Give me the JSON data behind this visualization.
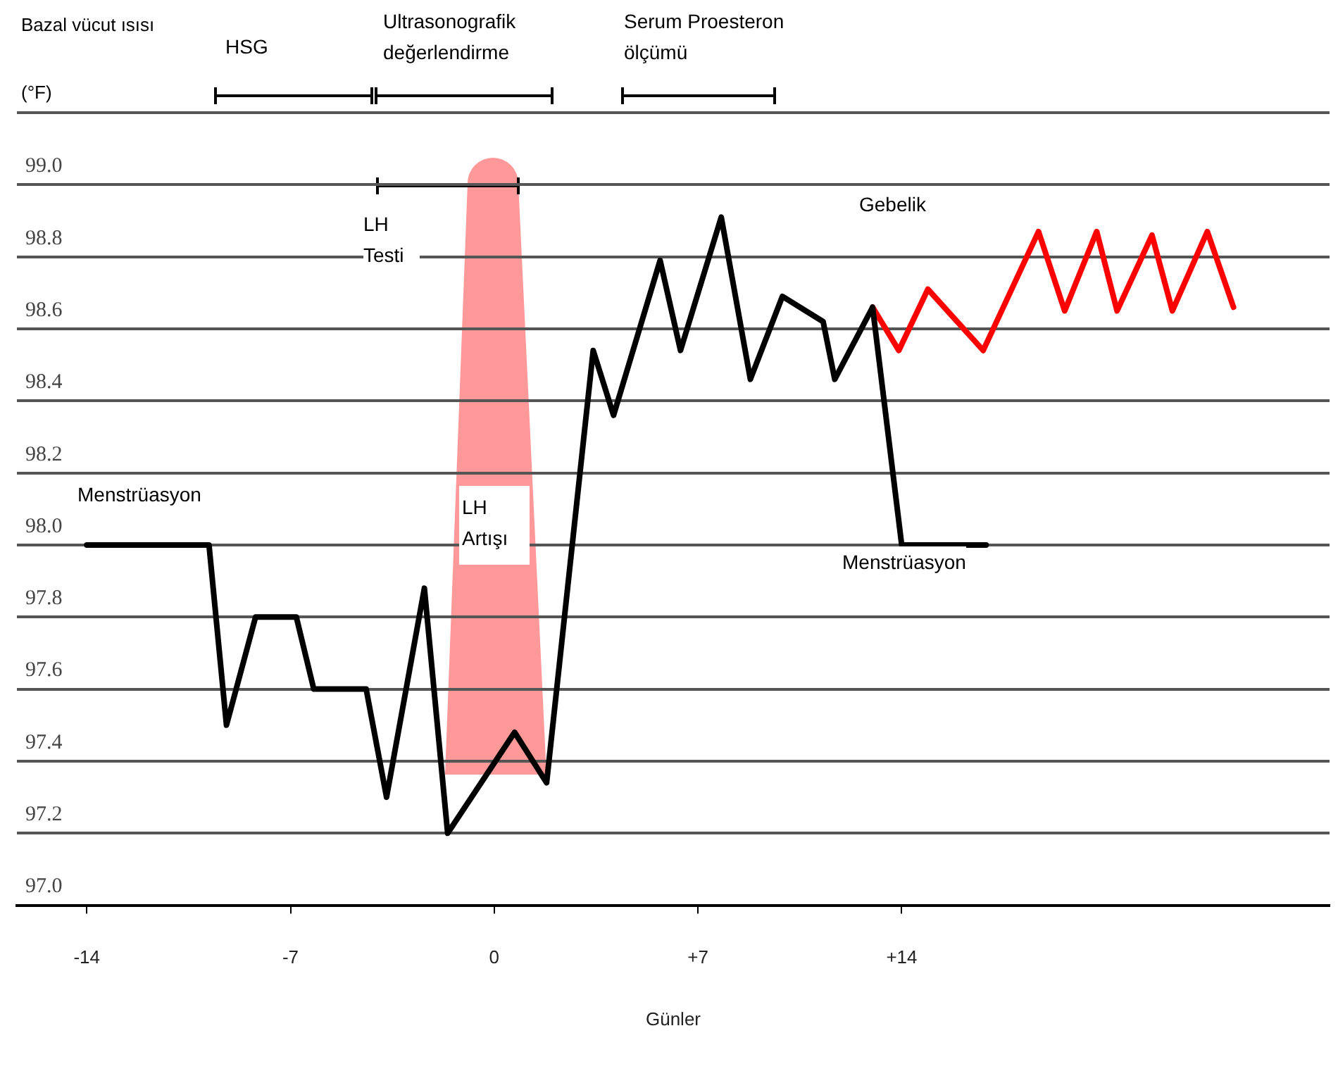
{
  "chart_data": {
    "type": "line",
    "xlabel": "Günler",
    "ylabel": "Bazal vücut ısısı (°F)",
    "xlim": [
      -16.4,
      28.7
    ],
    "xticks": [
      -14,
      -7,
      0,
      {
        "value": 7,
        "label": "+7"
      },
      {
        "value": 14,
        "label": "+14"
      }
    ],
    "ylim": [
      97.0,
      99.2
    ],
    "yticks": [
      {
        "value": 97.0,
        "label": "97.0"
      },
      {
        "value": 97.2,
        "label": "97.2"
      },
      {
        "value": 97.4,
        "label": "97.4"
      },
      {
        "value": 97.6,
        "label": "97.6"
      },
      {
        "value": 97.8,
        "label": "97.8"
      },
      {
        "value": 98.0,
        "label": "98.0"
      },
      {
        "value": 98.2,
        "label": "98.2"
      },
      {
        "value": 98.4,
        "label": "98.4"
      },
      {
        "value": 98.6,
        "label": "98.6"
      },
      {
        "value": 98.8,
        "label": "98.8"
      },
      {
        "value": 99.0,
        "label": "99.0"
      },
      {
        "value": 99.2,
        "label": null
      }
    ],
    "grid": "y",
    "legend": false,
    "marker": "none",
    "line_style": "solid",
    "series": [
      {
        "color": "#000000",
        "x": [
          -14.0,
          -9.8,
          -9.2,
          -8.2,
          -6.8,
          -6.2,
          -4.4,
          -3.7,
          -2.4,
          -1.6,
          0.7,
          1.8,
          3.4,
          4.1,
          5.7,
          6.4,
          7.8,
          8.8,
          9.9,
          11.3,
          11.7,
          13.0,
          14.0,
          16.9
        ],
        "values": [
          98.0,
          98.0,
          97.5,
          97.8,
          97.8,
          97.6,
          97.6,
          97.3,
          97.88,
          97.2,
          97.48,
          97.34,
          98.54,
          98.36,
          98.79,
          98.54,
          98.91,
          98.46,
          98.69,
          98.62,
          98.46,
          98.66,
          98.0,
          98.0
        ]
      },
      {
        "color": "#ff0000",
        "x": [
          13.0,
          13.9,
          14.9,
          16.8,
          18.7,
          19.6,
          20.7,
          21.4,
          22.6,
          23.3,
          24.5,
          25.4
        ],
        "values": [
          98.66,
          98.54,
          98.71,
          98.54,
          98.87,
          98.65,
          98.87,
          98.65,
          98.86,
          98.65,
          98.87,
          98.66
        ]
      }
    ],
    "annotations": [
      "HSG",
      "Ultrasonografik değerlendirme",
      "Serum Proesteron ölçümü",
      "LH Testi",
      "LH Artışı",
      "Menstrüasyon",
      "Menstrüasyon",
      "Gebelik"
    ]
  }
}
